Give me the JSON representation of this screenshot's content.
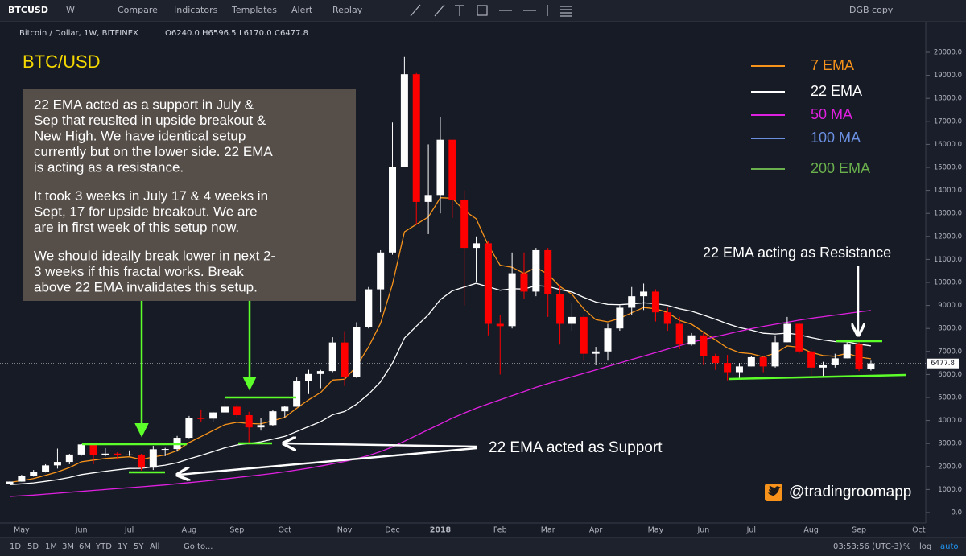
{
  "toolbar": {
    "symbol": "BTCUSD",
    "interval": "W",
    "items": [
      "Compare",
      "Indicators",
      "Templates",
      "Alert",
      "Replay"
    ],
    "layout": "DGB copy"
  },
  "header": {
    "title": "Bitcoin / Dollar, 1W, BITFINEX",
    "ohlc": [
      "O6240.0",
      "H6596.5",
      "L6170.0",
      "C6477.8"
    ]
  },
  "bottom": {
    "ranges": [
      "1D",
      "5D",
      "1M",
      "3M",
      "6M",
      "YTD",
      "1Y",
      "5Y",
      "All"
    ],
    "goto": "Go to...",
    "clock": "03:53:56 (UTC-3)",
    "scale": [
      "%",
      "log",
      "auto"
    ]
  },
  "chart_data": {
    "type": "candlestick",
    "categories": [
      null,
      "May",
      null,
      null,
      null,
      null,
      "Jun",
      null,
      null,
      null,
      "Jul",
      null,
      null,
      null,
      null,
      "Aug",
      null,
      null,
      null,
      "Sep",
      null,
      null,
      null,
      "Oct",
      null,
      null,
      null,
      null,
      "Nov",
      null,
      null,
      null,
      "Dec",
      null,
      null,
      null,
      "2018",
      null,
      null,
      null,
      null,
      "Feb",
      null,
      null,
      null,
      "Mar",
      null,
      null,
      null,
      "Apr",
      null,
      null,
      null,
      null,
      "May",
      null,
      null,
      null,
      "Jun",
      null,
      null,
      null,
      "Jul",
      null,
      null,
      null,
      null,
      "Aug",
      null,
      null,
      null,
      "Sep",
      null,
      null,
      null,
      null,
      "Oct"
    ],
    "open": [
      1250,
      1345,
      1600,
      1750,
      2050,
      2200,
      2520,
      2960,
      2510,
      2560,
      2500,
      2520,
      1950,
      2750,
      2760,
      3250,
      4100,
      4080,
      4350,
      4600,
      4230,
      3700,
      3800,
      4400,
      4600,
      5700,
      6020,
      6150,
      7390,
      5900,
      8050,
      9700,
      11300,
      15000,
      19050,
      13500,
      13800,
      16200,
      13600,
      11500,
      11700,
      8200,
      8100,
      10400,
      9600,
      11400,
      9500,
      8200,
      8500,
      6900,
      7000,
      8000,
      8900,
      9400,
      9600,
      8700,
      8200,
      7300,
      7700,
      6800,
      6500,
      6100,
      6350,
      6750,
      6350,
      7400,
      8200,
      7000,
      6300,
      6400,
      6700,
      7300,
      6240,
      null,
      null,
      null,
      null
    ],
    "high": [
      1350,
      1640,
      1850,
      2100,
      2780,
      2550,
      2980,
      2980,
      2800,
      2620,
      2700,
      2550,
      2900,
      2810,
      3330,
      4200,
      4480,
      4380,
      4980,
      4700,
      4380,
      4100,
      4450,
      4640,
      5870,
      6200,
      6200,
      7620,
      7880,
      8270,
      9800,
      11400,
      16950,
      19800,
      19100,
      16000,
      17200,
      16200,
      14000,
      12000,
      11800,
      8600,
      11300,
      11300,
      11500,
      11500,
      9900,
      9100,
      8600,
      7200,
      8200,
      9000,
      9800,
      9950,
      9700,
      8900,
      8500,
      7800,
      7800,
      6900,
      6850,
      6500,
      6800,
      6800,
      7700,
      8500,
      8250,
      7150,
      6550,
      6900,
      7400,
      7400,
      6596.5,
      null,
      null,
      null,
      null
    ],
    "low": [
      1230,
      1340,
      1560,
      1740,
      1910,
      2100,
      2470,
      2100,
      2440,
      2330,
      2460,
      1830,
      1850,
      2450,
      2650,
      3230,
      3950,
      3950,
      4330,
      4100,
      2970,
      3560,
      3750,
      4140,
      4600,
      5150,
      5400,
      6100,
      5500,
      5850,
      8000,
      8700,
      11200,
      15000,
      12500,
      12100,
      13000,
      12800,
      9000,
      10000,
      7700,
      6000,
      8000,
      9300,
      9400,
      8500,
      7300,
      7900,
      6600,
      6400,
      6600,
      7900,
      8600,
      8800,
      8300,
      7900,
      7100,
      7250,
      6400,
      6200,
      5750,
      5800,
      6350,
      6100,
      6300,
      7400,
      6900,
      5900,
      5900,
      6300,
      6700,
      6150,
      6170,
      null,
      null,
      null,
      null
    ],
    "close": [
      1345,
      1600,
      1750,
      2050,
      2200,
      2520,
      2960,
      2510,
      2560,
      2500,
      2520,
      1950,
      2750,
      2760,
      3250,
      4100,
      4080,
      4350,
      4600,
      4230,
      3700,
      3800,
      4400,
      4600,
      5700,
      6020,
      6150,
      7390,
      5900,
      8050,
      9700,
      11300,
      15000,
      19050,
      13500,
      13800,
      16200,
      13600,
      11500,
      11700,
      8200,
      8100,
      10400,
      9600,
      11400,
      9500,
      8200,
      8500,
      6900,
      7000,
      8000,
      8900,
      9400,
      9600,
      8700,
      8200,
      7300,
      7700,
      6800,
      6500,
      6100,
      6350,
      6750,
      6350,
      7400,
      8200,
      7000,
      6300,
      6400,
      6700,
      7300,
      6250,
      6477.8,
      null,
      null,
      null,
      null
    ],
    "up_color": "#ffffff",
    "down_color": "#ff0000",
    "series": [
      {
        "name": "7 EMA",
        "color": "#f7931a",
        "values": [
          1311,
          1383,
          1475,
          1619,
          1764,
          1953,
          2205,
          2281,
          2351,
          2388,
          2421,
          2303,
          2415,
          2501,
          2688,
          3041,
          3301,
          3563,
          3822,
          3924,
          3868,
          3851,
          3988,
          4141,
          4531,
          4903,
          5215,
          5759,
          5794,
          6358,
          7194,
          8221,
          9916,
          12200,
          12525,
          12844,
          13683,
          13662,
          13122,
          12766,
          11624,
          10743,
          10657,
          10393,
          10645,
          10359,
          9819,
          9489,
          8842,
          8381,
          8286,
          8440,
          8680,
          8910,
          8857,
          8693,
          8345,
          8184,
          7838,
          7503,
          7152,
          6952,
          6902,
          6764,
          6923,
          7242,
          7181,
          6961,
          6821,
          6791,
          6918,
          6751,
          6683,
          null,
          null,
          null,
          null
        ]
      },
      {
        "name": "22 EMA",
        "color": "#ffffff",
        "values": [
          1213,
          1247,
          1291,
          1357,
          1430,
          1525,
          1650,
          1725,
          1798,
          1859,
          1917,
          1920,
          1992,
          2059,
          2163,
          2331,
          2483,
          2645,
          2815,
          2938,
          3004,
          3073,
          3188,
          3311,
          3519,
          3737,
          3947,
          4247,
          4391,
          4709,
          5143,
          5679,
          6490,
          7583,
          8098,
          8594,
          9256,
          9634,
          9797,
          9963,
          9810,
          9661,
          9725,
          9714,
          9860,
          9829,
          9687,
          9584,
          9350,
          9146,
          9046,
          9033,
          9065,
          9112,
          9076,
          9000,
          8852,
          8752,
          8582,
          8401,
          8201,
          8040,
          7928,
          7791,
          7757,
          7796,
          7727,
          7603,
          7499,
          7429,
          7418,
          7316,
          7244,
          null,
          null,
          null,
          null
        ]
      },
      {
        "name": "50 MA",
        "color": "#e020e0",
        "values": [
          700,
          730,
          760,
          800,
          840,
          880,
          920,
          960,
          1000,
          1040,
          1080,
          1120,
          1160,
          1200,
          1250,
          1300,
          1350,
          1400,
          1460,
          1520,
          1580,
          1640,
          1700,
          1770,
          1850,
          1930,
          2020,
          2120,
          2220,
          2340,
          2480,
          2650,
          2850,
          3100,
          3350,
          3600,
          3850,
          4100,
          4320,
          4530,
          4720,
          4900,
          5080,
          5260,
          5440,
          5600,
          5750,
          5900,
          6050,
          6200,
          6350,
          6500,
          6650,
          6800,
          6950,
          7100,
          7250,
          7400,
          7520,
          7640,
          7760,
          7880,
          7990,
          8090,
          8180,
          8270,
          8360,
          8440,
          8510,
          8580,
          8650,
          8720,
          8780,
          null,
          null,
          null,
          null
        ]
      }
    ],
    "legend_extra": [
      {
        "name": "100 MA",
        "color": "#6a8fe0"
      },
      {
        "name": "200 EMA",
        "color": "#6ab04c"
      }
    ],
    "ylim": [
      -455,
      21294
    ],
    "yticks": [
      {
        "value": 0,
        "label": "0.0"
      },
      {
        "value": 1000,
        "label": "1000.0"
      },
      {
        "value": 2000,
        "label": "2000.0"
      },
      {
        "value": 3000,
        "label": "3000.0"
      },
      {
        "value": 4000,
        "label": "4000.0"
      },
      {
        "value": 5000,
        "label": "5000.0"
      },
      {
        "value": 6000,
        "label": "6000.0"
      },
      {
        "value": 7000,
        "label": "7000.0"
      },
      {
        "value": 8000,
        "label": "8000.0"
      },
      {
        "value": 9000,
        "label": "9000.0"
      },
      {
        "value": 10000,
        "label": "10000.0"
      },
      {
        "value": 11000,
        "label": "11000.0"
      },
      {
        "value": 12000,
        "label": "12000.0"
      },
      {
        "value": 13000,
        "label": "13000.0"
      },
      {
        "value": 14000,
        "label": "14000.0"
      },
      {
        "value": 15000,
        "label": "15000.0"
      },
      {
        "value": 16000,
        "label": "16000.0"
      },
      {
        "value": 17000,
        "label": "17000.0"
      },
      {
        "value": 18000,
        "label": "18000.0"
      },
      {
        "value": 19000,
        "label": "19000.0"
      },
      {
        "value": 20000,
        "label": "20000.0"
      }
    ],
    "annotations": {
      "title": "BTC/USD",
      "note": [
        [
          "22 EMA acted as a support in July &",
          "Sep that reuslted in upside breakout &",
          "New High. We have identical setup",
          "currently but on the lower side. 22 EMA",
          "is acting as  a resistance."
        ],
        [
          "It took 3 weeks in July 17 & 4 weeks in",
          "Sept, 17 for upside breakout. We are",
          "are in first week of this setup now."
        ],
        [
          "We should ideally break lower in next 2-",
          "3 weeks if this fractal works.  Break",
          "above 22 EMA invalidates this setup."
        ]
      ],
      "support": "22 EMA acted as Support",
      "resistance": "22 EMA acting as Resistance",
      "handle": "@tradingroomapp"
    }
  }
}
